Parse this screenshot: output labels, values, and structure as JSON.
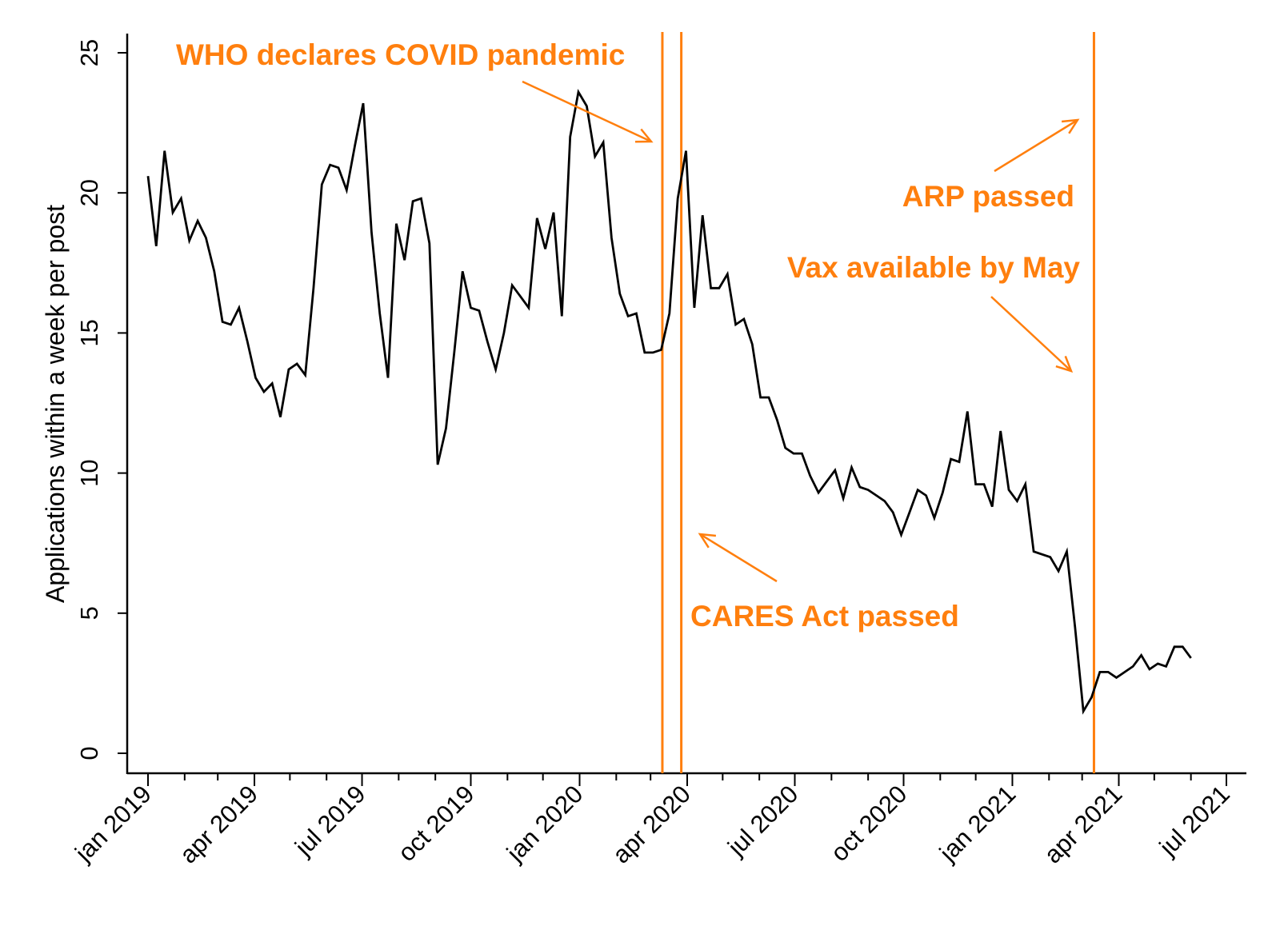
{
  "chart_data": {
    "type": "line",
    "title": "",
    "xlabel": "",
    "ylabel": "Applications within a week per post",
    "x_start": "2019-01-01",
    "x_step_days": 7,
    "xlim": [
      "2019-01-01",
      "2021-07-01"
    ],
    "ylim": [
      0,
      25
    ],
    "grid": false,
    "y_ticks": [
      0,
      5,
      10,
      15,
      20,
      25
    ],
    "x_ticks": [
      {
        "date": "2019-01-01",
        "label": "jan 2019"
      },
      {
        "date": "2019-04-01",
        "label": "apr 2019"
      },
      {
        "date": "2019-07-01",
        "label": "jul 2019"
      },
      {
        "date": "2019-10-01",
        "label": "oct 2019"
      },
      {
        "date": "2020-01-01",
        "label": "jan 2020"
      },
      {
        "date": "2020-04-01",
        "label": "apr 2020"
      },
      {
        "date": "2020-07-01",
        "label": "jul 2020"
      },
      {
        "date": "2020-10-01",
        "label": "oct 2020"
      },
      {
        "date": "2021-01-01",
        "label": "jan 2021"
      },
      {
        "date": "2021-04-01",
        "label": "apr 2021"
      },
      {
        "date": "2021-07-01",
        "label": "jul 2021"
      }
    ],
    "series": [
      {
        "name": "Applications within a week per post",
        "color": "#000000",
        "values": [
          20.6,
          18.1,
          21.5,
          19.3,
          19.8,
          18.3,
          19.0,
          18.4,
          17.2,
          15.4,
          15.3,
          15.9,
          14.7,
          13.4,
          12.9,
          13.2,
          12.0,
          13.7,
          13.9,
          13.5,
          16.6,
          20.3,
          21.0,
          20.9,
          20.1,
          21.7,
          23.2,
          18.6,
          15.7,
          13.4,
          18.9,
          17.6,
          19.7,
          19.8,
          18.2,
          10.3,
          11.6,
          14.3,
          17.2,
          15.9,
          15.8,
          14.7,
          13.7,
          15.0,
          16.7,
          16.3,
          15.9,
          19.1,
          18.0,
          19.3,
          15.6,
          22.0,
          23.6,
          23.1,
          21.3,
          21.8,
          18.4,
          16.4,
          15.6,
          15.7,
          14.3,
          14.3,
          14.4,
          15.7,
          19.8,
          21.5,
          15.9,
          19.2,
          16.6,
          16.6,
          17.1,
          15.3,
          15.5,
          14.6,
          12.7,
          12.7,
          11.9,
          10.9,
          10.7,
          10.7,
          9.9,
          9.3,
          9.7,
          10.1,
          9.1,
          10.2,
          9.5,
          9.4,
          9.2,
          9.0,
          8.6,
          7.8,
          8.6,
          9.4,
          9.2,
          8.4,
          9.3,
          10.5,
          10.4,
          12.2,
          9.6,
          9.6,
          8.8,
          11.5,
          9.4,
          9.0,
          9.6,
          7.2,
          7.1,
          7.0,
          6.5,
          7.2,
          4.5,
          1.5,
          2.0,
          2.9,
          2.9,
          2.7,
          2.9,
          3.1,
          3.5,
          3.0,
          3.2,
          3.1,
          3.8,
          3.8,
          3.4
        ]
      }
    ],
    "events": [
      {
        "name": "who",
        "date": "2020-03-11"
      },
      {
        "name": "cares",
        "date": "2020-03-27"
      },
      {
        "name": "arp",
        "date": "2021-03-11"
      }
    ],
    "annotations": {
      "who": "WHO declares COVID pandemic",
      "cares": "CARES Act passed",
      "arp": "ARP passed",
      "vax": "Vax available by May"
    },
    "event_color": "#FF7F0E"
  }
}
